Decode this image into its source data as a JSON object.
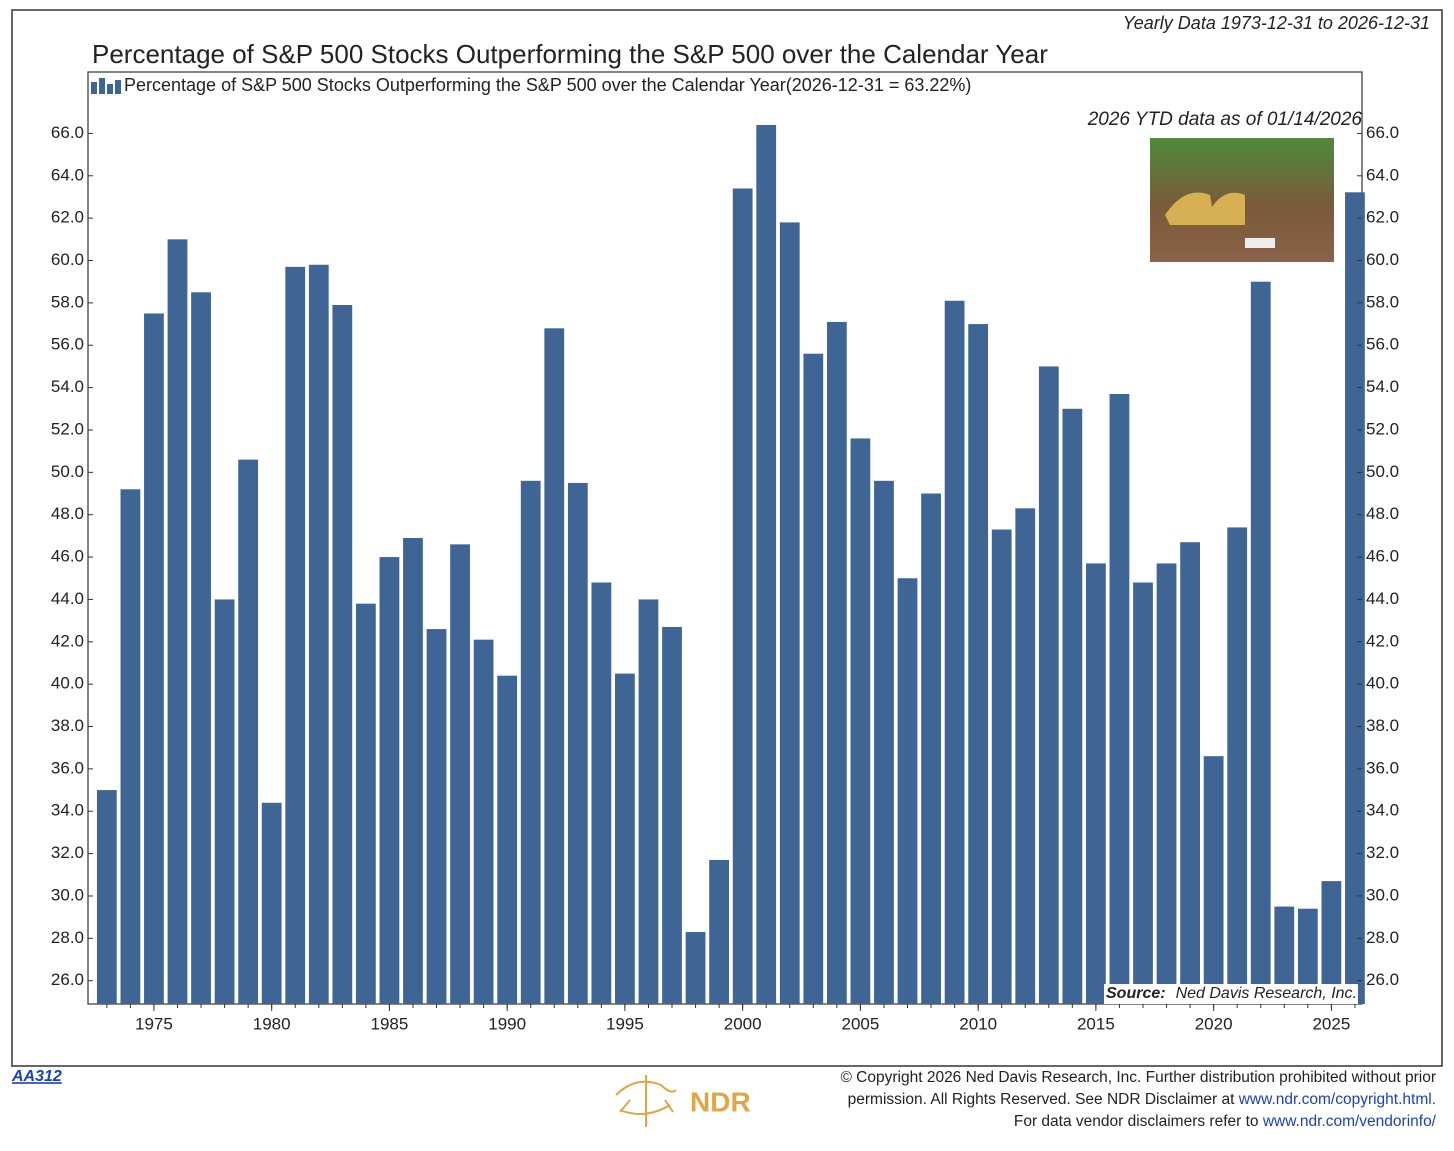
{
  "chart_data": {
    "type": "bar",
    "header": "Yearly Data 1973-12-31 to 2026-12-31",
    "title": "Percentage of S&P 500 Stocks Outperforming the S&P 500 over the Calendar Year",
    "legend_note": "(2026-12-31 = 63.22%)",
    "annotation": "2026 YTD data as of 01/14/2026",
    "source_label": "Source:",
    "source": "Ned Davis Research, Inc.",
    "x": [
      1973,
      1974,
      1975,
      1976,
      1977,
      1978,
      1979,
      1980,
      1981,
      1982,
      1983,
      1984,
      1985,
      1986,
      1987,
      1988,
      1989,
      1990,
      1991,
      1992,
      1993,
      1994,
      1995,
      1996,
      1997,
      1998,
      1999,
      2000,
      2001,
      2002,
      2003,
      2004,
      2005,
      2006,
      2007,
      2008,
      2009,
      2010,
      2011,
      2012,
      2013,
      2014,
      2015,
      2016,
      2017,
      2018,
      2019,
      2020,
      2021,
      2022,
      2023,
      2024,
      2025,
      2026
    ],
    "series": [
      {
        "name": "Percentage of S&P 500 Stocks Outperforming the S&P 500 over the Calendar Year",
        "color": "#3f6594",
        "values": [
          35.0,
          49.2,
          57.5,
          61.0,
          58.5,
          44.0,
          50.6,
          34.4,
          59.7,
          59.8,
          57.9,
          43.8,
          46.0,
          46.9,
          42.6,
          46.6,
          42.1,
          40.4,
          49.6,
          56.8,
          49.5,
          44.8,
          40.5,
          44.0,
          42.7,
          28.3,
          31.7,
          63.4,
          66.4,
          61.8,
          55.6,
          57.1,
          51.6,
          49.6,
          45.0,
          49.0,
          58.1,
          57.0,
          47.3,
          48.3,
          55.0,
          53.0,
          45.7,
          53.7,
          44.8,
          45.7,
          46.7,
          36.6,
          47.4,
          59.0,
          29.5,
          29.4,
          30.7,
          63.22
        ]
      }
    ],
    "xlim": [
      1972.2,
      2026.3
    ],
    "xticks": [
      1975,
      1980,
      1985,
      1990,
      1995,
      2000,
      2005,
      2010,
      2015,
      2020,
      2025
    ],
    "ylim": [
      24.9,
      68.9
    ],
    "yticks": [
      {
        "value": 26,
        "label": "26.0"
      },
      {
        "value": 28,
        "label": "28.0"
      },
      {
        "value": 30,
        "label": "30.0"
      },
      {
        "value": 32,
        "label": "32.0"
      },
      {
        "value": 34,
        "label": "34.0"
      },
      {
        "value": 36,
        "label": "36.0"
      },
      {
        "value": 38,
        "label": "38.0"
      },
      {
        "value": 40,
        "label": "40.0"
      },
      {
        "value": 42,
        "label": "42.0"
      },
      {
        "value": 44,
        "label": "44.0"
      },
      {
        "value": 46,
        "label": "46.0"
      },
      {
        "value": 48,
        "label": "48.0"
      },
      {
        "value": 50,
        "label": "50.0"
      },
      {
        "value": 52,
        "label": "52.0"
      },
      {
        "value": 54,
        "label": "54.0"
      },
      {
        "value": 56,
        "label": "56.0"
      },
      {
        "value": 58,
        "label": "58.0"
      },
      {
        "value": 60,
        "label": "60.0"
      },
      {
        "value": 62,
        "label": "62.0"
      },
      {
        "value": 64,
        "label": "64.0"
      },
      {
        "value": 66,
        "label": "66.0"
      }
    ],
    "grid": false
  },
  "footer": {
    "code": "AA312",
    "logo": "NDR",
    "line1": "© Copyright 2026 Ned Davis Research, Inc. Further distribution prohibited without prior",
    "line2": "permission. All Rights Reserved. See NDR Disclaimer at ",
    "link2": "www.ndr.com/copyright.html.",
    "line3": "For data vendor disclaimers refer to ",
    "link3": "www.ndr.com/vendorinfo/"
  }
}
